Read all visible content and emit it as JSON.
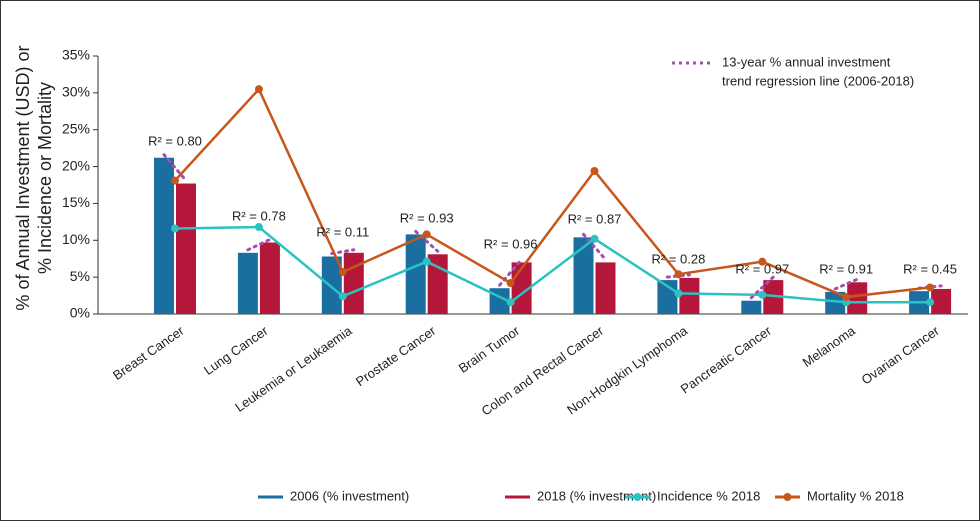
{
  "chart_data": {
    "type": "bar_line",
    "y_axis_label": [
      "% of Annual Investment (USD) or",
      "% Incidence or Mortality"
    ],
    "categories": [
      "Breast Cancer",
      "Lung Cancer",
      "Leukemia or Leukaemia",
      "Prostate Cancer",
      "Brain Tumor",
      "Colon and Rectal Cancer",
      "Non-Hodgkin Lymphoma",
      "Pancreatic Cancer",
      "Melanoma",
      "Ovarian Cancer"
    ],
    "series": [
      {
        "name": "2006 (% investment)",
        "kind": "bar",
        "color": "#1a6fa0",
        "values": [
          21.2,
          8.3,
          7.8,
          10.8,
          3.5,
          10.4,
          4.6,
          1.8,
          3.0,
          3.1
        ]
      },
      {
        "name": "2018 (% investment)",
        "kind": "bar",
        "color": "#b5173a",
        "values": [
          17.7,
          9.7,
          8.3,
          8.1,
          7.0,
          7.0,
          4.9,
          4.6,
          4.3,
          3.4
        ]
      },
      {
        "name": "Incidence % 2018",
        "kind": "line",
        "color": "#2ac2c2",
        "values": [
          11.6,
          11.8,
          2.4,
          7.1,
          1.6,
          10.2,
          2.8,
          2.6,
          1.6,
          1.6
        ]
      },
      {
        "name": "Mortality % 2018",
        "kind": "line",
        "color": "#c8561a",
        "values": [
          18.1,
          30.5,
          5.7,
          10.8,
          4.2,
          19.4,
          5.4,
          7.1,
          2.3,
          3.6
        ]
      }
    ],
    "r2_labels": [
      "R² = 0.80",
      "R² = 0.78",
      "R² = 0.11",
      "R² = 0.93",
      "R² = 0.96",
      "R² = 0.87",
      "R² = 0.28",
      "R² = 0.97",
      "R² = 0.91",
      "R² = 0.45"
    ],
    "trend_legend": {
      "label": [
        "13-year % annual investment",
        "trend regression line (2006-2018)"
      ],
      "color": "#a24fb0"
    },
    "ylim": [
      0,
      35
    ],
    "yticks": [
      {
        "value": 0,
        "label": "0%"
      },
      {
        "value": 5,
        "label": "5%"
      },
      {
        "value": 10,
        "label": "10%"
      },
      {
        "value": 15,
        "label": "15%"
      },
      {
        "value": 20,
        "label": "20%"
      },
      {
        "value": 25,
        "label": "25%"
      },
      {
        "value": 30,
        "label": "30%"
      },
      {
        "value": 35,
        "label": "35%"
      }
    ],
    "grid": false
  }
}
